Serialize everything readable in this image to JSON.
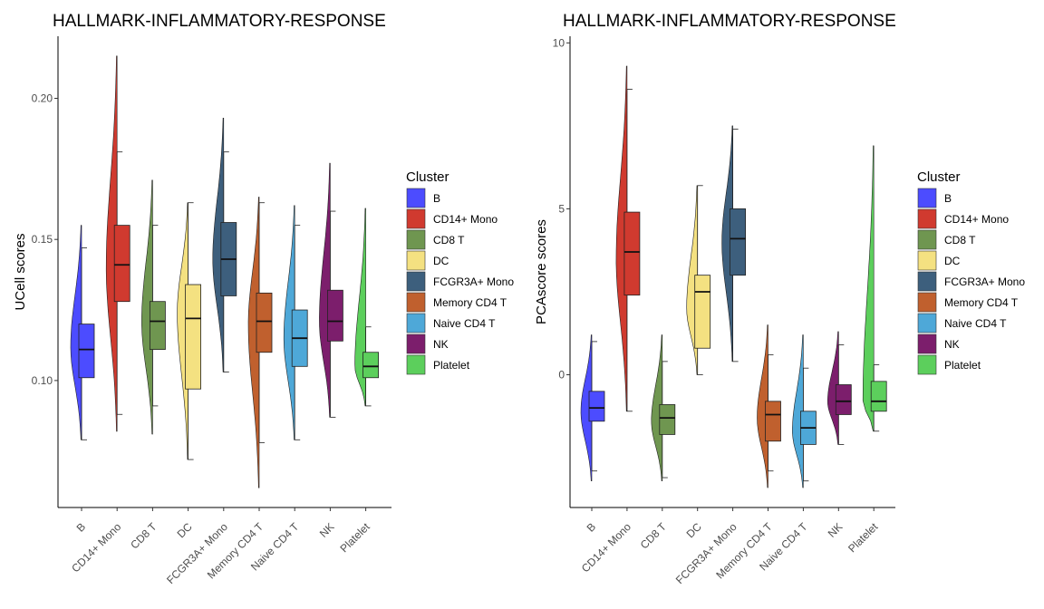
{
  "chart_data": [
    {
      "type": "violin-box",
      "title": "HALLMARK-INFLAMMATORY-RESPONSE",
      "ylabel": "UCell scores",
      "xlabel": "",
      "ylim": [
        0.055,
        0.222
      ],
      "yticks": [
        "0.10",
        "0.15",
        "0.20"
      ],
      "ytick_values": [
        0.1,
        0.15,
        0.2
      ],
      "categories": [
        "B",
        "CD14+ Mono",
        "CD8 T",
        "DC",
        "FCGR3A+ Mono",
        "Memory CD4 T",
        "Naive CD4 T",
        "NK",
        "Platelet"
      ],
      "boxes": [
        {
          "min": 0.079,
          "q1": 0.101,
          "median": 0.111,
          "q3": 0.12,
          "max": 0.147,
          "vmin": 0.079,
          "vmax": 0.155,
          "peak": 0.112
        },
        {
          "min": 0.088,
          "q1": 0.128,
          "median": 0.141,
          "q3": 0.155,
          "max": 0.181,
          "vmin": 0.082,
          "vmax": 0.215,
          "peak": 0.14
        },
        {
          "min": 0.091,
          "q1": 0.111,
          "median": 0.121,
          "q3": 0.128,
          "max": 0.155,
          "vmin": 0.081,
          "vmax": 0.171,
          "peak": 0.121
        },
        {
          "min": 0.072,
          "q1": 0.097,
          "median": 0.122,
          "q3": 0.134,
          "max": 0.163,
          "vmin": 0.072,
          "vmax": 0.163,
          "peak": 0.124
        },
        {
          "min": 0.103,
          "q1": 0.13,
          "median": 0.143,
          "q3": 0.156,
          "max": 0.181,
          "vmin": 0.103,
          "vmax": 0.193,
          "peak": 0.143
        },
        {
          "min": 0.078,
          "q1": 0.11,
          "median": 0.121,
          "q3": 0.131,
          "max": 0.163,
          "vmin": 0.062,
          "vmax": 0.165,
          "peak": 0.12
        },
        {
          "min": 0.079,
          "q1": 0.105,
          "median": 0.115,
          "q3": 0.125,
          "max": 0.155,
          "vmin": 0.079,
          "vmax": 0.162,
          "peak": 0.115
        },
        {
          "min": 0.087,
          "q1": 0.114,
          "median": 0.121,
          "q3": 0.132,
          "max": 0.16,
          "vmin": 0.087,
          "vmax": 0.177,
          "peak": 0.121
        },
        {
          "min": 0.091,
          "q1": 0.101,
          "median": 0.105,
          "q3": 0.11,
          "max": 0.119,
          "vmin": 0.091,
          "vmax": 0.161,
          "peak": 0.105
        }
      ]
    },
    {
      "type": "violin-box",
      "title": "HALLMARK-INFLAMMATORY-RESPONSE",
      "ylabel": "PCAscore scores",
      "xlabel": "",
      "ylim": [
        -4.0,
        10.2
      ],
      "yticks": [
        "0",
        "5",
        "10"
      ],
      "ytick_values": [
        0,
        5,
        10
      ],
      "categories": [
        "B",
        "CD14+ Mono",
        "CD8 T",
        "DC",
        "FCGR3A+ Mono",
        "Memory CD4 T",
        "Naive CD4 T",
        "NK",
        "Platelet"
      ],
      "boxes": [
        {
          "min": -2.9,
          "q1": -1.4,
          "median": -1.0,
          "q3": -0.5,
          "max": 1.0,
          "vmin": -3.2,
          "vmax": 1.2,
          "peak": -1.1
        },
        {
          "min": -1.1,
          "q1": 2.4,
          "median": 3.7,
          "q3": 4.9,
          "max": 8.6,
          "vmin": -1.1,
          "vmax": 9.3,
          "peak": 3.5
        },
        {
          "min": -3.1,
          "q1": -1.8,
          "median": -1.3,
          "q3": -0.9,
          "max": 0.4,
          "vmin": -3.2,
          "vmax": 1.2,
          "peak": -1.4
        },
        {
          "min": 0.0,
          "q1": 0.8,
          "median": 2.5,
          "q3": 3.0,
          "max": 5.7,
          "vmin": 0.0,
          "vmax": 5.7,
          "peak": 2.0
        },
        {
          "min": 0.4,
          "q1": 3.0,
          "median": 4.1,
          "q3": 5.0,
          "max": 7.4,
          "vmin": 0.4,
          "vmax": 7.5,
          "peak": 4.0
        },
        {
          "min": -2.9,
          "q1": -2.0,
          "median": -1.2,
          "q3": -0.8,
          "max": 0.6,
          "vmin": -3.4,
          "vmax": 1.5,
          "peak": -1.3
        },
        {
          "min": -3.2,
          "q1": -2.1,
          "median": -1.6,
          "q3": -1.1,
          "max": 0.2,
          "vmin": -3.4,
          "vmax": 1.2,
          "peak": -1.7
        },
        {
          "min": -2.1,
          "q1": -1.2,
          "median": -0.8,
          "q3": -0.3,
          "max": 0.9,
          "vmin": -2.1,
          "vmax": 1.3,
          "peak": -0.8
        },
        {
          "min": -1.7,
          "q1": -1.1,
          "median": -0.8,
          "q3": -0.2,
          "max": 0.3,
          "vmin": -1.7,
          "vmax": 6.9,
          "peak": -0.8
        }
      ]
    }
  ],
  "legend": {
    "title": "Cluster",
    "items": [
      {
        "label": "B",
        "color": "#4c4cff"
      },
      {
        "label": "CD14+ Mono",
        "color": "#d03a2f"
      },
      {
        "label": "CD8 T",
        "color": "#6f9650"
      },
      {
        "label": "DC",
        "color": "#f4e181"
      },
      {
        "label": "FCGR3A+ Mono",
        "color": "#3d5f7d"
      },
      {
        "label": "Memory CD4 T",
        "color": "#c0602e"
      },
      {
        "label": "Naive CD4 T",
        "color": "#4ea8d8"
      },
      {
        "label": "NK",
        "color": "#7c1e6c"
      },
      {
        "label": "Platelet",
        "color": "#5ccf5c"
      }
    ]
  }
}
